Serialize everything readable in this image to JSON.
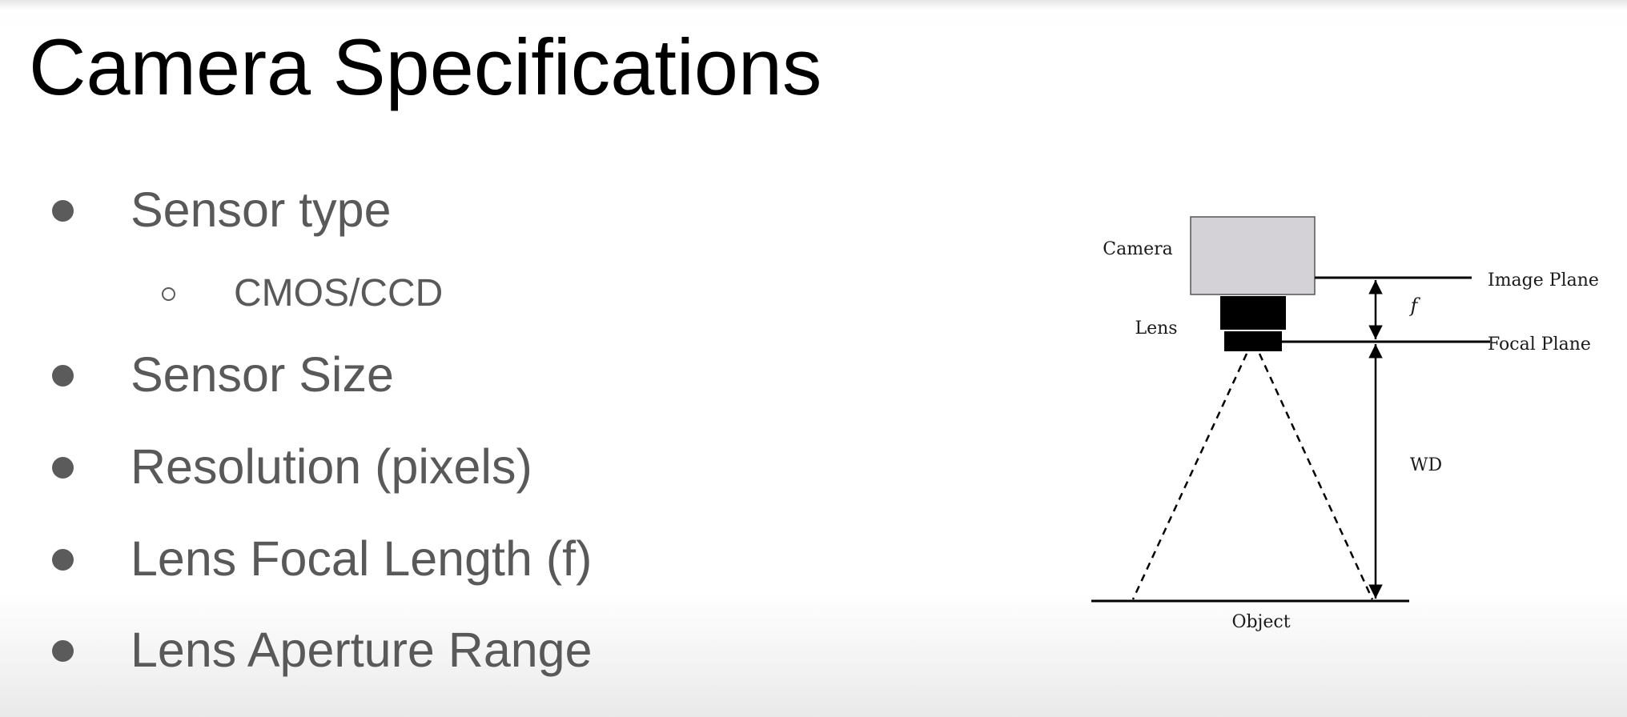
{
  "slide": {
    "title": "Camera Specifications"
  },
  "bullets": [
    {
      "label": "Sensor type",
      "level": 1
    },
    {
      "label": "CMOS/CCD",
      "level": 2
    },
    {
      "label": "Sensor Size",
      "level": 1
    },
    {
      "label": "Resolution (pixels)",
      "level": 1
    },
    {
      "label": "Lens Focal Length (f)",
      "level": 1
    },
    {
      "label": "Lens Aperture Range",
      "level": 1
    }
  ],
  "diagram": {
    "camera_label": "Camera",
    "lens_label": "Lens",
    "image_plane_label": "Image Plane",
    "focal_plane_label": "Focal Plane",
    "focal_length_label": "f",
    "working_distance_label": "WD",
    "object_label": "Object"
  },
  "colors": {
    "title_text": "#000000",
    "bullet_text": "#595959",
    "camera_body_fill": "#d4d2d6",
    "lens_fill": "#000000"
  }
}
